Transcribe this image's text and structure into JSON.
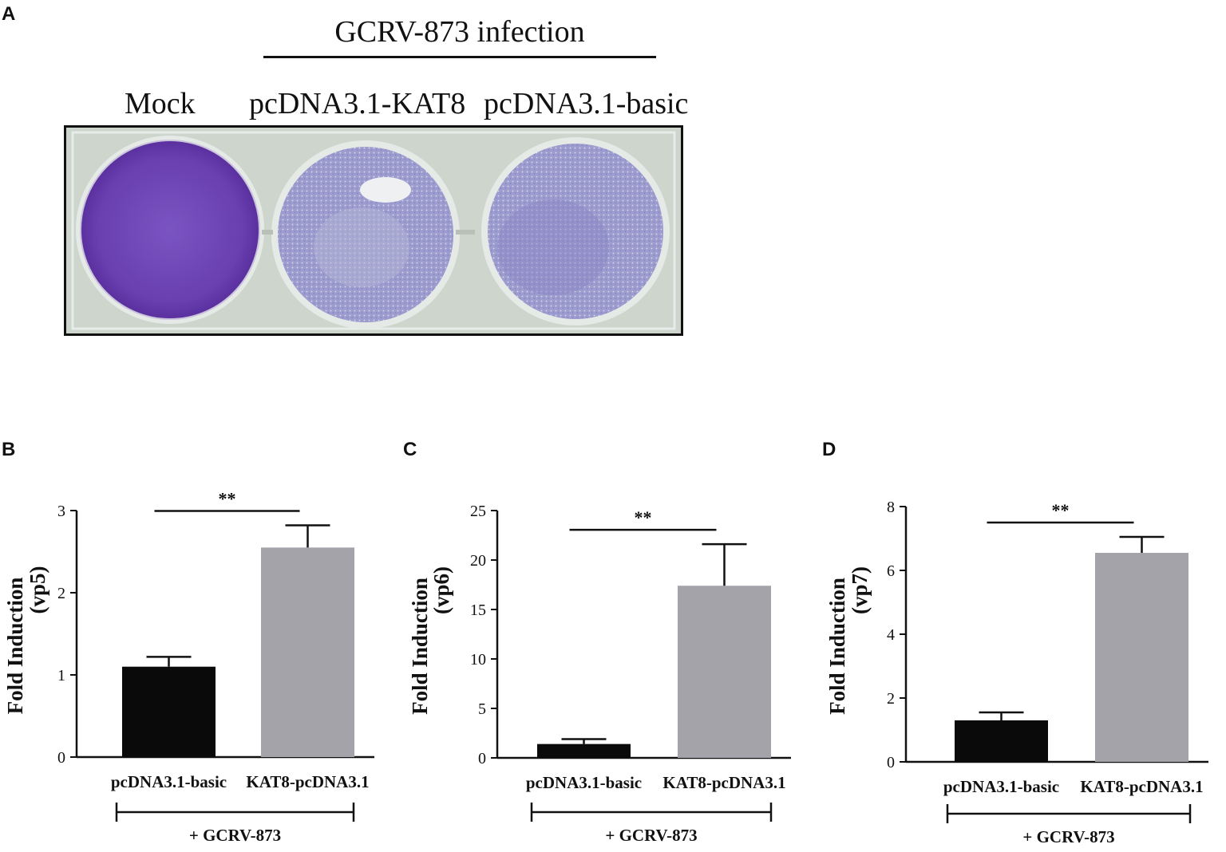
{
  "panel_a": {
    "letter": "A",
    "header": "GCRV-873 infection",
    "wells": [
      "Mock",
      "pcDNA3.1-KAT8",
      "pcDNA3.1-basic"
    ],
    "stain_color": "#6a3fb0"
  },
  "chart_data": [
    {
      "panel": "B",
      "type": "bar",
      "categories": [
        "pcDNA3.1-basic",
        "KAT8-pcDNA3.1"
      ],
      "values": [
        1.1,
        2.55
      ],
      "errors": [
        0.12,
        0.27
      ],
      "colors": [
        "#0a0a0a",
        "#a4a3a9"
      ],
      "ylabel": "Fold Induction",
      "ylabel2": "(vp5)",
      "ylim": [
        0,
        3
      ],
      "yticks": [
        0,
        1,
        2,
        3
      ],
      "significance": "**",
      "group_label": "+ GCRV-873",
      "grid": false
    },
    {
      "panel": "C",
      "type": "bar",
      "categories": [
        "pcDNA3.1-basic",
        "KAT8-pcDNA3.1"
      ],
      "values": [
        1.4,
        17.4
      ],
      "errors": [
        0.5,
        4.2
      ],
      "colors": [
        "#0a0a0a",
        "#a4a3a9"
      ],
      "ylabel": "Fold Induction",
      "ylabel2": "(vp6)",
      "ylim": [
        0,
        25
      ],
      "yticks": [
        0,
        5,
        10,
        15,
        20,
        25
      ],
      "significance": "**",
      "group_label": "+ GCRV-873",
      "grid": false
    },
    {
      "panel": "D",
      "type": "bar",
      "categories": [
        "pcDNA3.1-basic",
        "KAT8-pcDNA3.1"
      ],
      "values": [
        1.3,
        6.55
      ],
      "errors": [
        0.25,
        0.5
      ],
      "colors": [
        "#0a0a0a",
        "#a4a3a9"
      ],
      "ylabel": "Fold Induction",
      "ylabel2": "(vp7)",
      "ylim": [
        0,
        8
      ],
      "yticks": [
        0,
        2,
        4,
        6,
        8
      ],
      "significance": "**",
      "group_label": "+ GCRV-873",
      "grid": false
    }
  ]
}
